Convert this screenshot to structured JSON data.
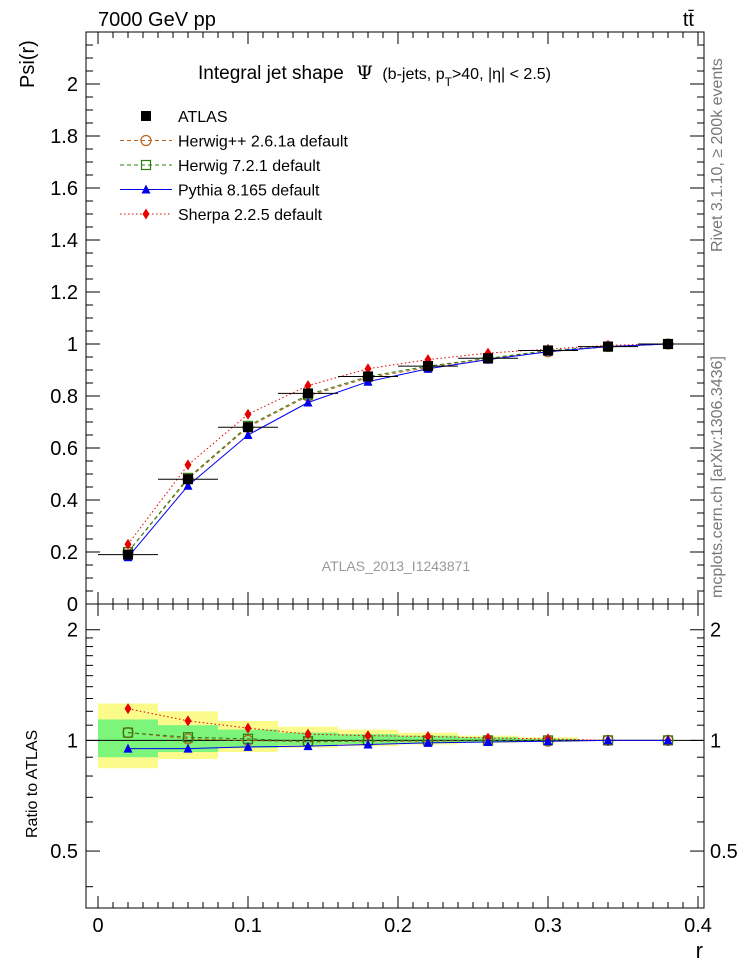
{
  "header": {
    "left": "7000 GeV pp",
    "right": "tt̄"
  },
  "side_label": "Rivet 3.1.10, ≥ 200k events",
  "side_label2": "mcplots.cern.ch [arXiv:1306.3436]",
  "watermark": "ATLAS_2013_I1243871",
  "title": {
    "main": "Integral jet shape",
    "psi": "Ψ",
    "pre": "(b-jets, p",
    "sub": "T",
    "post": ">40, |η| < 2.5)"
  },
  "colors": {
    "atlas": "#000000",
    "herwigpp": "#b8651b",
    "herwig7": "#2e7d13",
    "pythia": "#0000ee",
    "sherpa": "#e60000",
    "band_green": "#7df57d",
    "band_yellow": "#fbfb8c"
  },
  "chart_data": [
    {
      "type": "line",
      "title": "Integral jet shape Ψ (b-jets, pT>40, |η| < 2.5)",
      "xlabel": "r",
      "ylabel": "Psi(r)",
      "xlim": [
        -0.008,
        0.404
      ],
      "ylim": [
        0,
        2.2
      ],
      "y_ticks": [
        0,
        0.2,
        0.4,
        0.6,
        0.8,
        1,
        1.2,
        1.4,
        1.6,
        1.8,
        2
      ],
      "y_tick_labels": [
        "0",
        "0.2",
        "0.4",
        "0.6",
        "0.8",
        "1",
        "1.2",
        "1.4",
        "1.6",
        "1.8",
        "2"
      ],
      "legend_position": "top-left",
      "x": [
        0.02,
        0.06,
        0.1,
        0.14,
        0.18,
        0.22,
        0.26,
        0.3,
        0.34,
        0.38
      ],
      "series": [
        {
          "name": "ATLAS",
          "key": "atlas",
          "marker": "square-filled",
          "line": "none",
          "values": [
            0.19,
            0.48,
            0.68,
            0.81,
            0.875,
            0.915,
            0.945,
            0.975,
            0.99,
            1.0
          ]
        },
        {
          "name": "Herwig++ 2.6.1a default",
          "key": "herwigpp",
          "marker": "circle-open",
          "line": "dashed",
          "values": [
            0.2,
            0.48,
            0.68,
            0.8,
            0.87,
            0.91,
            0.945,
            0.97,
            0.99,
            1.0
          ]
        },
        {
          "name": "Herwig 7.2.1 default",
          "key": "herwig7",
          "marker": "square-open",
          "line": "dashed",
          "values": [
            0.2,
            0.485,
            0.685,
            0.805,
            0.875,
            0.915,
            0.945,
            0.975,
            0.99,
            1.0
          ]
        },
        {
          "name": "Pythia 8.165 default",
          "key": "pythia",
          "marker": "triangle-filled",
          "line": "solid",
          "values": [
            0.18,
            0.455,
            0.65,
            0.775,
            0.855,
            0.905,
            0.94,
            0.97,
            0.99,
            1.0
          ]
        },
        {
          "name": "Sherpa 2.2.5 default",
          "key": "sherpa",
          "marker": "diamond-filled",
          "line": "dotted",
          "values": [
            0.23,
            0.535,
            0.73,
            0.84,
            0.905,
            0.94,
            0.965,
            0.98,
            0.995,
            1.0
          ]
        }
      ]
    },
    {
      "type": "line",
      "title": "Ratio to ATLAS",
      "xlabel": "r",
      "ylabel": "Ratio to ATLAS",
      "xlim": [
        -0.008,
        0.404
      ],
      "ylim": [
        0.35,
        2.35
      ],
      "y_scale": "log",
      "y_ticks": [
        0.5,
        1,
        2
      ],
      "y_tick_labels": [
        "0.5",
        "1",
        "2"
      ],
      "x_ticks": [
        0,
        0.1,
        0.2,
        0.3,
        0.4
      ],
      "x_tick_labels": [
        "0",
        "0.1",
        "0.2",
        "0.3",
        "0.4"
      ],
      "x": [
        0.02,
        0.06,
        0.1,
        0.14,
        0.18,
        0.22,
        0.26,
        0.3,
        0.34,
        0.38
      ],
      "bin_edges": [
        0,
        0.04,
        0.08,
        0.12,
        0.16,
        0.2,
        0.24,
        0.28,
        0.32,
        0.36,
        0.4
      ],
      "band_yellow": {
        "low": [
          0.84,
          0.89,
          0.93,
          0.955,
          0.965,
          0.975,
          0.985,
          0.99,
          1.0,
          1.0
        ],
        "high": [
          1.26,
          1.2,
          1.13,
          1.09,
          1.07,
          1.05,
          1.03,
          1.02,
          1.0,
          1.0
        ]
      },
      "band_green": {
        "low": [
          0.9,
          0.93,
          0.955,
          0.97,
          0.978,
          0.985,
          0.99,
          0.995,
          1.0,
          1.0
        ],
        "high": [
          1.14,
          1.1,
          1.07,
          1.05,
          1.04,
          1.03,
          1.02,
          1.01,
          1.0,
          1.0
        ]
      },
      "series": [
        {
          "name": "Herwig++ 2.6.1a default",
          "key": "herwigpp",
          "marker": "circle-open",
          "line": "dashed",
          "values": [
            1.05,
            1.01,
            1.0,
            0.99,
            0.995,
            0.995,
            1.0,
            0.995,
            1.0,
            1.0
          ]
        },
        {
          "name": "Herwig 7.2.1 default",
          "key": "herwig7",
          "marker": "square-open",
          "line": "dashed",
          "values": [
            1.05,
            1.02,
            1.01,
            0.995,
            1.0,
            1.0,
            1.0,
            1.0,
            1.0,
            1.0
          ]
        },
        {
          "name": "Pythia 8.165 default",
          "key": "pythia",
          "marker": "triangle-filled",
          "line": "solid",
          "values": [
            0.95,
            0.95,
            0.96,
            0.965,
            0.975,
            0.985,
            0.99,
            0.995,
            1.0,
            1.0
          ]
        },
        {
          "name": "Sherpa 2.2.5 default",
          "key": "sherpa",
          "marker": "diamond-filled",
          "line": "dotted",
          "values": [
            1.22,
            1.13,
            1.08,
            1.04,
            1.03,
            1.025,
            1.015,
            1.01,
            1.0,
            1.0
          ]
        }
      ]
    }
  ]
}
